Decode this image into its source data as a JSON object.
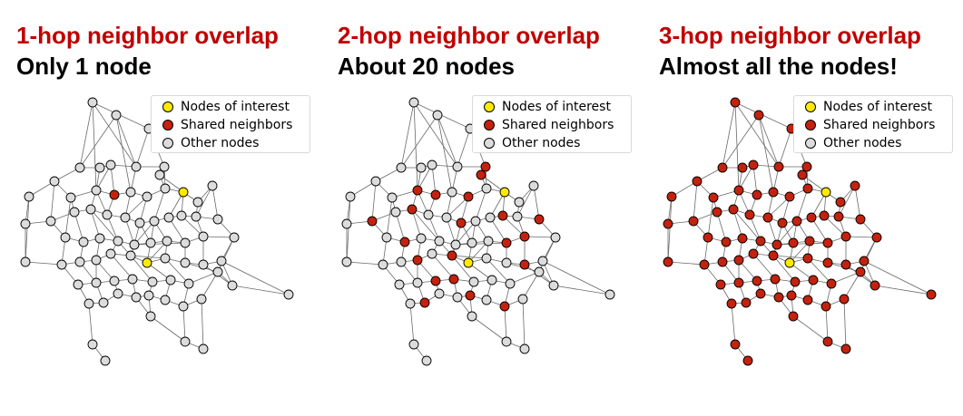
{
  "colors": {
    "title": "#c00000",
    "interest": "#ffea00",
    "shared": "#c4220e",
    "other": "#dcdcdc",
    "edge": "#6a6a6a"
  },
  "legend": {
    "interest": "Nodes of interest",
    "shared": "Shared neighbors",
    "other": "Other nodes"
  },
  "panels": [
    {
      "title": "1-hop neighbor overlap",
      "subtitle": "Only 1 node"
    },
    {
      "title": "2-hop neighbor overlap",
      "subtitle": "About 20 nodes"
    },
    {
      "title": "3-hop neighbor overlap",
      "subtitle": "Almost all the nodes!"
    }
  ]
}
